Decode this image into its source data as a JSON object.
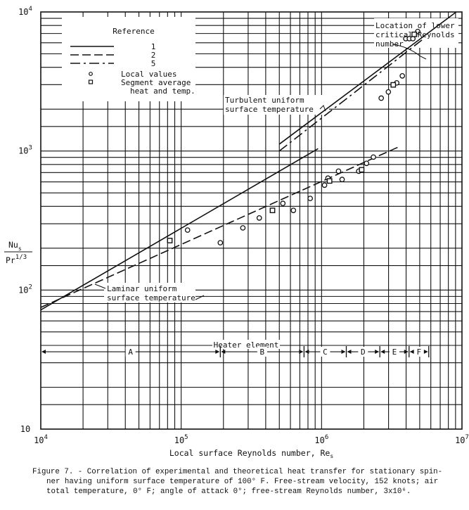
{
  "chart_data": {
    "type": "scatter",
    "xscale": "log",
    "yscale": "log",
    "xlim": [
      10000,
      10000000
    ],
    "ylim": [
      10,
      10000
    ],
    "grid": true,
    "xlabel": "Local surface Reynolds number, Re",
    "xlabel_sub": "s",
    "ylabel_num": "Nu",
    "ylabel_num_sub": "s",
    "ylabel_den": "Pr",
    "ylabel_den_sup": "1/3",
    "xticks": [
      {
        "base": "10",
        "exp": "4",
        "value": 10000
      },
      {
        "base": "10",
        "exp": "5",
        "value": 100000
      },
      {
        "base": "10",
        "exp": "6",
        "value": 1000000
      },
      {
        "base": "10",
        "exp": "7",
        "value": 10000000
      }
    ],
    "yticks": [
      {
        "base": "10",
        "exp": "",
        "value": 10
      },
      {
        "base": "10",
        "exp": "2",
        "value": 100
      },
      {
        "base": "10",
        "exp": "3",
        "value": 1000
      },
      {
        "base": "10",
        "exp": "4",
        "value": 10000
      }
    ],
    "legend": {
      "title": "Reference",
      "placement": "top-left",
      "lines": [
        {
          "label": "1",
          "style": "solid"
        },
        {
          "label": "2",
          "style": "dashed"
        },
        {
          "label": "5",
          "style": "dash-dot"
        }
      ],
      "markers": [
        {
          "label": "Local values",
          "marker": "circle"
        },
        {
          "label": "Segment average",
          "label2": "heat and temp.",
          "marker": "square"
        }
      ]
    },
    "series": [
      {
        "name": "1",
        "kind": "line",
        "style": "solid",
        "segments": [
          [
            [
              10000,
              72
            ],
            [
              945000,
              1040
            ]
          ],
          [
            [
              500000,
              1120
            ],
            [
              9100000,
              10000
            ]
          ]
        ]
      },
      {
        "name": "2",
        "kind": "line",
        "style": "dashed",
        "segments": [
          [
            [
              10000,
              75
            ],
            [
              3500000,
              1065
            ]
          ]
        ]
      },
      {
        "name": "5",
        "kind": "line",
        "style": "dash-dot",
        "segments": [
          [
            [
              500000,
              1000
            ],
            [
              5200000,
              6300
            ]
          ]
        ]
      },
      {
        "name": "Local values",
        "kind": "scatter",
        "marker": "circle",
        "points": [
          [
            111000,
            270
          ],
          [
            190000,
            219
          ],
          [
            275000,
            280
          ],
          [
            360000,
            330
          ],
          [
            530000,
            420
          ],
          [
            630000,
            374
          ],
          [
            830000,
            456
          ],
          [
            1050000,
            568
          ],
          [
            1110000,
            638
          ],
          [
            1320000,
            716
          ],
          [
            1400000,
            624
          ],
          [
            1840000,
            716
          ],
          [
            2090000,
            815
          ],
          [
            2340000,
            904
          ],
          [
            2660000,
            2400
          ],
          [
            2990000,
            2660
          ],
          [
            3430000,
            3090
          ],
          [
            3760000,
            3470
          ],
          [
            3980000,
            6430
          ],
          [
            4220000,
            6430
          ],
          [
            4470000,
            6430
          ],
          [
            4840000,
            7230
          ]
        ]
      },
      {
        "name": "Segment average heat and temp.",
        "kind": "scatter",
        "marker": "square",
        "points": [
          [
            83000,
            227
          ],
          [
            447000,
            374
          ],
          [
            1140000,
            609
          ],
          [
            1930000,
            733
          ],
          [
            3240000,
            2990
          ],
          [
            4570000,
            6900
          ]
        ]
      }
    ],
    "annotations": {
      "lower_critical": [
        "Location of lower",
        "critical Reynolds",
        "number"
      ],
      "turbulent": [
        "Turbulent uniform",
        "surface temperature"
      ],
      "laminar": [
        "Laminar uniform",
        "surface temperature"
      ],
      "heater": "Heater element"
    },
    "segments": [
      {
        "label": "A",
        "from": 10000,
        "to": 190000
      },
      {
        "label": "B",
        "from": 190000,
        "to": 750000
      },
      {
        "label": "C",
        "from": 750000,
        "to": 1500000
      },
      {
        "label": "D",
        "from": 1500000,
        "to": 2600000
      },
      {
        "label": "E",
        "from": 2600000,
        "to": 4200000
      },
      {
        "label": "F",
        "from": 4200000,
        "to": 5800000
      }
    ],
    "segment_level": 36
  },
  "caption": {
    "line1": "Figure 7. - Correlation of experimental and theoretical heat transfer for stationary spin-",
    "line2": "ner having uniform surface temperature of 100° F.  Free-stream velocity, 152 knots; air",
    "line3": "total temperature, 0° F; angle of attack 0°; free-stream Reynolds number, 3x10⁶."
  }
}
